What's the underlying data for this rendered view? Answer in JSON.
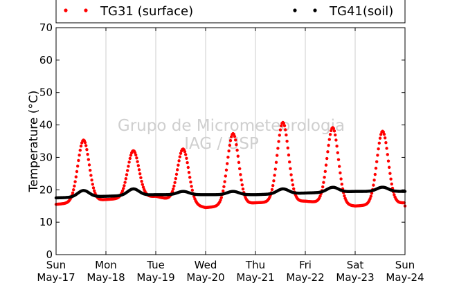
{
  "chart_data": {
    "type": "scatter",
    "ylabel": "Temperature (°C)",
    "xlabel": "",
    "ylim": [
      0,
      70
    ],
    "y_ticks": [
      0,
      10,
      20,
      30,
      40,
      50,
      60,
      70
    ],
    "x_ticks": [
      {
        "day": "Sun",
        "date": "May-17"
      },
      {
        "day": "Mon",
        "date": "May-18"
      },
      {
        "day": "Tue",
        "date": "May-19"
      },
      {
        "day": "Wed",
        "date": "May-20"
      },
      {
        "day": "Thu",
        "date": "May-21"
      },
      {
        "day": "Fri",
        "date": "May-22"
      },
      {
        "day": "Sat",
        "date": "May-23"
      },
      {
        "day": "Sun",
        "date": "May-24"
      }
    ],
    "grid": "vertical",
    "legend_placement": "top",
    "watermark": [
      "Grupo de Micrometeorologia",
      "IAG / USP"
    ],
    "series": [
      {
        "name": "TG31 (surface)",
        "color": "#ff0000",
        "marker": "dot",
        "daily": [
          {
            "min": 15.5,
            "max": 34.5
          },
          {
            "min": 17.0,
            "max": 31.5
          },
          {
            "min": 18.0,
            "max": 34.5
          },
          {
            "min": 14.5,
            "max": 36.5
          },
          {
            "min": 16.0,
            "max": 40.5
          },
          {
            "min": 16.5,
            "max": 40.0
          },
          {
            "min": 15.0,
            "max": 37.5
          }
        ],
        "end_value": 16.0
      },
      {
        "name": "TG41(soil)",
        "color": "#000000",
        "marker": "dot",
        "daily": [
          {
            "min": 17.5,
            "max": 19.5
          },
          {
            "min": 18.0,
            "max": 20.0
          },
          {
            "min": 18.5,
            "max": 19.5
          },
          {
            "min": 18.5,
            "max": 19.5
          },
          {
            "min": 18.5,
            "max": 20.0
          },
          {
            "min": 19.0,
            "max": 20.5
          },
          {
            "min": 19.5,
            "max": 20.8
          }
        ],
        "end_value": 19.5
      }
    ]
  }
}
